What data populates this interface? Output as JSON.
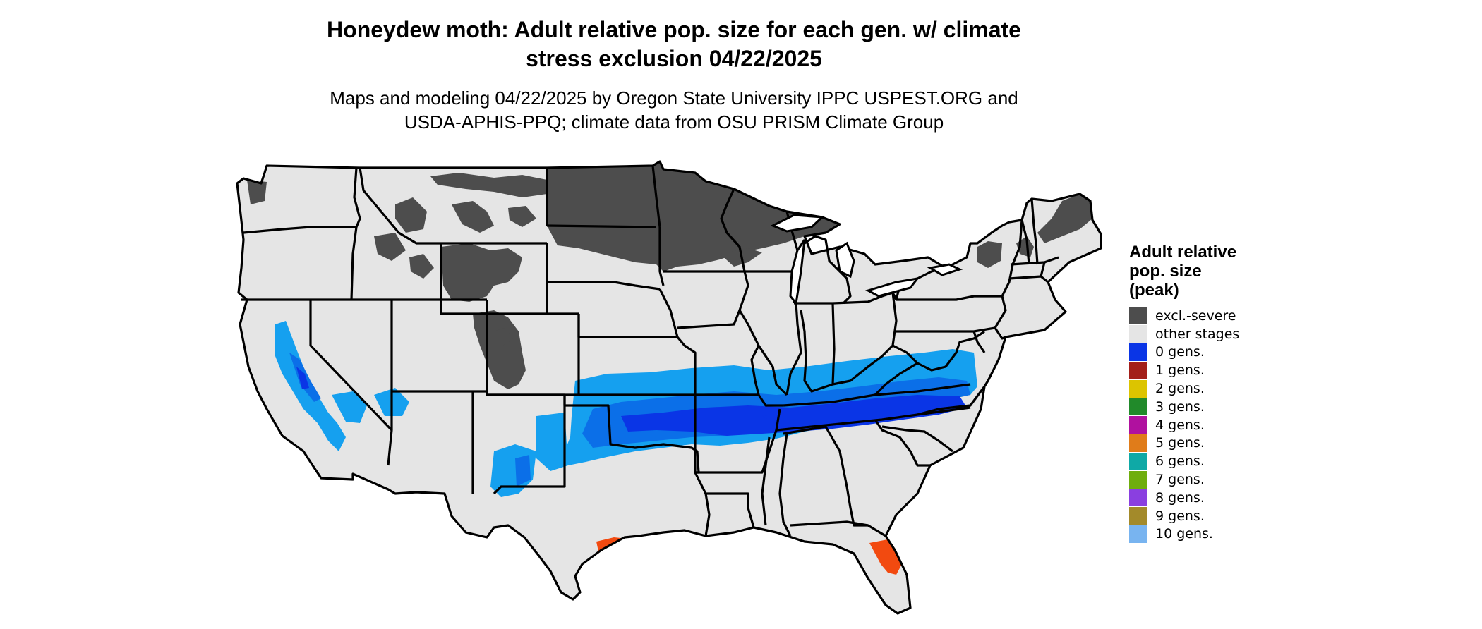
{
  "title_line1": "Honeydew moth: Adult relative pop. size for each gen. w/ climate",
  "title_line2": "stress exclusion 04/22/2025",
  "subtitle_line1": "Maps and modeling 04/22/2025 by Oregon State University IPPC USPEST.ORG and",
  "subtitle_line2": "USDA-APHIS-PPQ; climate data from OSU PRISM Climate Group",
  "legend": {
    "title_line1": "Adult relative",
    "title_line2": "pop. size",
    "title_line3": "(peak)",
    "items": [
      {
        "label": "excl.-severe",
        "color": "#4d4d4d"
      },
      {
        "label": "other stages",
        "color": "#e5e5e5"
      },
      {
        "label": "0 gens.",
        "color": "#0a35e6"
      },
      {
        "label": "1 gens.",
        "color": "#a31f1a"
      },
      {
        "label": "2 gens.",
        "color": "#dcc400"
      },
      {
        "label": "3 gens.",
        "color": "#218a2a"
      },
      {
        "label": "4 gens.",
        "color": "#b0119f"
      },
      {
        "label": "5 gens.",
        "color": "#e07c1a"
      },
      {
        "label": "6 gens.",
        "color": "#0fa9a6"
      },
      {
        "label": "7 gens.",
        "color": "#6fae0d"
      },
      {
        "label": "8 gens.",
        "color": "#8a3fe0"
      },
      {
        "label": "9 gens.",
        "color": "#a38a2a"
      },
      {
        "label": "10 gens.",
        "color": "#78b4f0"
      }
    ]
  },
  "map_colors": {
    "other_stages": "#e5e5e5",
    "excluded": "#4d4d4d",
    "zero_gens": "#0a35e6",
    "light_blue": "#15a0ef",
    "mid_blue": "#0b6fe8",
    "orange_red": "#f24a10",
    "border": "#000000"
  }
}
